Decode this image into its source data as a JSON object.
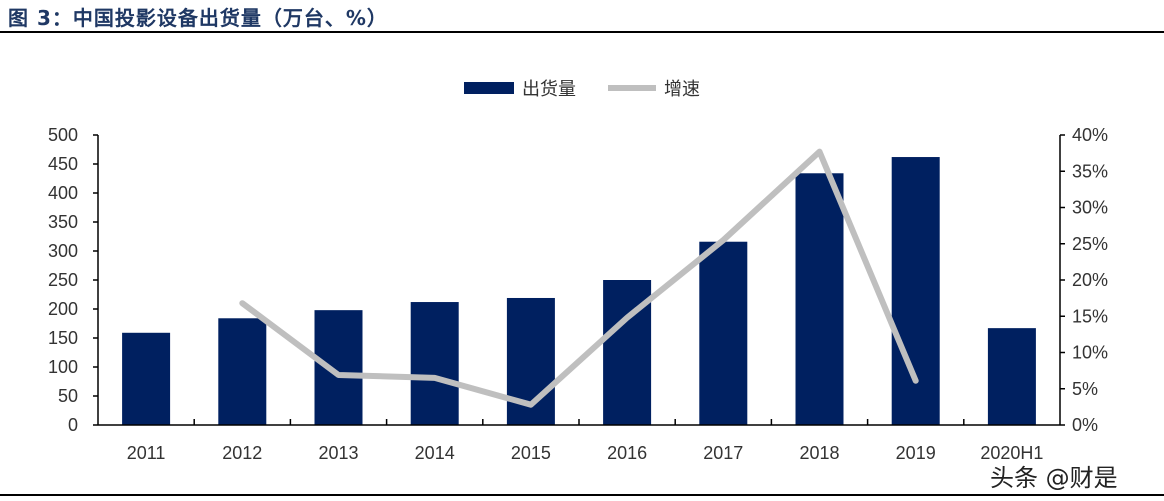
{
  "title": "图 3：中国投影设备出货量（万台、%）",
  "watermark": "头条 @财是",
  "chart_data": {
    "type": "bar+line",
    "categories": [
      "2011",
      "2012",
      "2013",
      "2014",
      "2015",
      "2016",
      "2017",
      "2018",
      "2019",
      "2020H1"
    ],
    "series": [
      {
        "name": "出货量",
        "type": "bar",
        "axis": "left",
        "color": "#002060",
        "values": [
          159,
          184,
          198,
          212,
          219,
          250,
          316,
          434,
          462,
          167
        ]
      },
      {
        "name": "增速",
        "type": "line",
        "axis": "right",
        "color": "#bfbfbf",
        "values": [
          null,
          16.8,
          6.9,
          6.5,
          2.8,
          14.8,
          25.5,
          37.7,
          6.1,
          null
        ]
      }
    ],
    "left_axis": {
      "ylim": [
        0,
        500
      ],
      "ticks": [
        "0",
        "50",
        "100",
        "150",
        "200",
        "250",
        "300",
        "350",
        "400",
        "450",
        "500"
      ]
    },
    "right_axis": {
      "ylim": [
        0,
        40
      ],
      "ticks": [
        "0%",
        "5%",
        "10%",
        "15%",
        "20%",
        "25%",
        "30%",
        "35%",
        "40%"
      ]
    },
    "legend": "top-center",
    "grid": false
  }
}
